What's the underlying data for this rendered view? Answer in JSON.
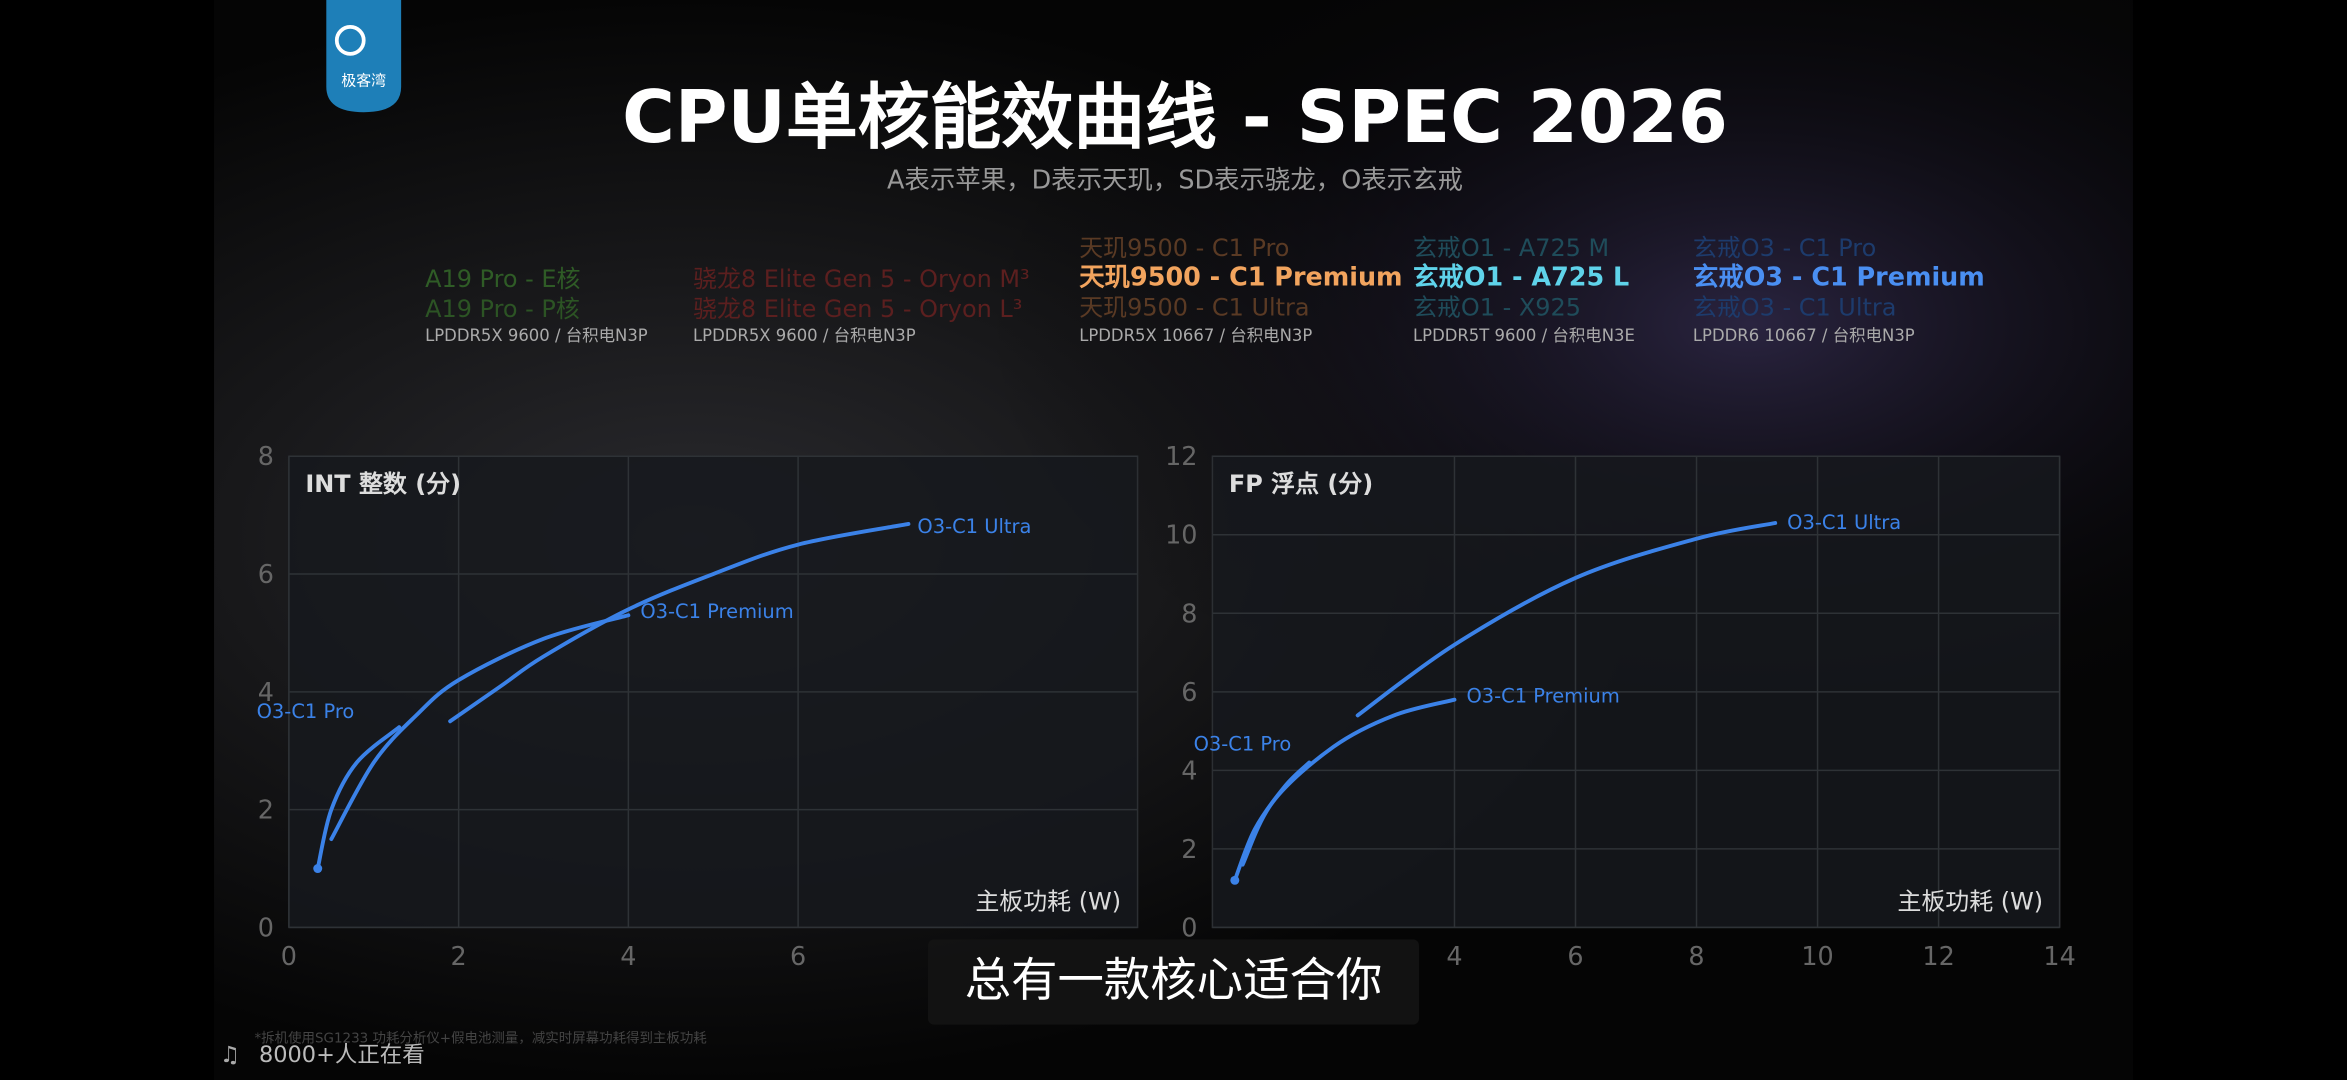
{
  "logo": "极客湾",
  "title": "CPU单核能效曲线 - SPEC 2026",
  "subtitle": "A表示苹果，D表示天玑，SD表示骁龙，O表示玄戒",
  "legend_groups": [
    {
      "lines": [
        {
          "text": "A19 Pro - E核",
          "color": "#2f5c26"
        },
        {
          "text": "A19 Pro - P核",
          "color": "#2c5424"
        }
      ],
      "memory": "LPDDR5X 9600 / 台积电N3P"
    },
    {
      "lines": [
        {
          "text": "骁龙8 Elite Gen 5 - Oryon M³",
          "color": "#5c1f1f"
        },
        {
          "text": "骁龙8 Elite Gen 5 - Oryon L³",
          "color": "#5c1f1f"
        }
      ],
      "memory": "LPDDR5X 9600 / 台积电N3P"
    },
    {
      "lines": [
        {
          "text": "天玑9500 - C1 Pro",
          "color": "#5a3a24"
        },
        {
          "text": "天玑9500 - C1 Premium",
          "color": "#f2a45e"
        },
        {
          "text": "天玑9500 - C1 Ultra",
          "color": "#5a3a24"
        }
      ],
      "memory": "LPDDR5X 10667 / 台积电N3P"
    },
    {
      "lines": [
        {
          "text": "玄戒O1 - A725 M",
          "color": "#1f4c5a"
        },
        {
          "text": "玄戒O1 - A725 L",
          "color": "#5fd3ea"
        },
        {
          "text": "玄戒O1 - X925",
          "color": "#1f4c5a"
        }
      ],
      "memory": "LPDDR5T 9600 / 台积电N3E"
    },
    {
      "lines": [
        {
          "text": "玄戒O3 - C1 Pro",
          "color": "#1d3b6c"
        },
        {
          "text": "玄戒O3 - C1 Premium",
          "color": "#4a8ff2"
        },
        {
          "text": "玄戒O3 - C1 Ultra",
          "color": "#1d3b6c"
        }
      ],
      "memory": "LPDDR6 10667 / 台积电N3P"
    }
  ],
  "chart_data": [
    {
      "type": "line",
      "title": "INT 整数 (分)",
      "x_label": "主板功耗 (W)",
      "xlim": [
        0,
        10
      ],
      "xticks": [
        0,
        2,
        4,
        6
      ],
      "ylim": [
        0,
        8
      ],
      "yticks": [
        0,
        2,
        4,
        6,
        8
      ],
      "grid": true,
      "series": [
        {
          "name": "O3-C1 Ultra",
          "color": "#3b82e8",
          "x": [
            1.9,
            2.5,
            3,
            4,
            5,
            6,
            7.3
          ],
          "values": [
            3.5,
            4.1,
            4.6,
            5.4,
            6.0,
            6.5,
            6.85
          ]
        },
        {
          "name": "O3-C1 Premium",
          "color": "#3b82e8",
          "x": [
            0.5,
            1,
            1.5,
            2,
            3,
            4
          ],
          "values": [
            1.5,
            2.8,
            3.6,
            4.2,
            4.9,
            5.3
          ]
        },
        {
          "name": "O3-C1 Pro",
          "color": "#3b82e8",
          "x": [
            0.34,
            0.5,
            0.8,
            1.3
          ],
          "values": [
            1.0,
            2.0,
            2.8,
            3.4
          ]
        }
      ]
    },
    {
      "type": "line",
      "title": "FP 浮点 (分)",
      "x_label": "主板功耗 (W)",
      "xlim": [
        0,
        14
      ],
      "xticks": [
        4,
        6,
        8,
        10,
        12,
        14
      ],
      "ylim": [
        0,
        12
      ],
      "yticks": [
        0,
        2,
        4,
        6,
        8,
        10,
        12
      ],
      "grid": true,
      "series": [
        {
          "name": "O3-C1 Ultra",
          "color": "#3b82e8",
          "x": [
            2.4,
            4,
            6,
            8,
            9.3
          ],
          "values": [
            5.4,
            7.2,
            8.9,
            9.9,
            10.3
          ]
        },
        {
          "name": "O3-C1 Premium",
          "color": "#3b82e8",
          "x": [
            0.5,
            1,
            2,
            3,
            4
          ],
          "values": [
            1.6,
            3.2,
            4.6,
            5.4,
            5.8
          ]
        },
        {
          "name": "O3-C1 Pro",
          "color": "#3b82e8",
          "x": [
            0.37,
            0.7,
            1.2,
            1.6
          ],
          "values": [
            1.2,
            2.5,
            3.6,
            4.2
          ]
        }
      ]
    }
  ],
  "caption": "总有一款核心适合你",
  "footnote": "*拆机使用SG1233 功耗分析仪+假电池测量，减实时屏幕功耗得到主板功耗",
  "viewers": "8000+人正在看"
}
